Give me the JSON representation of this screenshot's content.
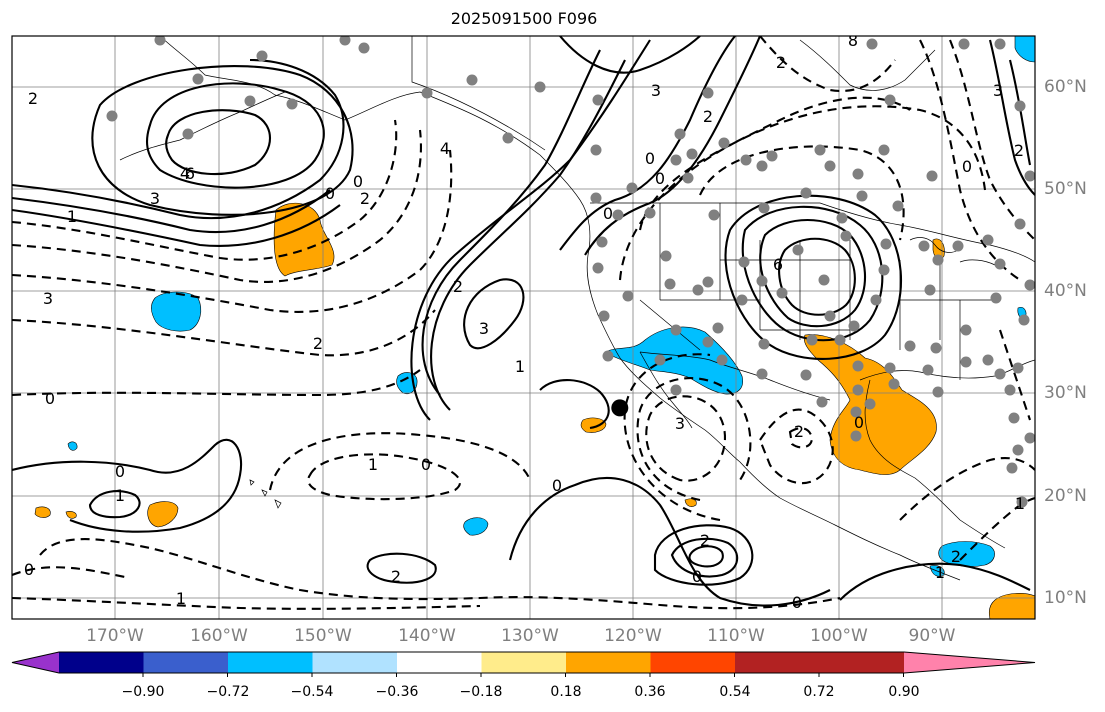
{
  "title": "2025091500 F096",
  "lon_labels": [
    "170°W",
    "160°W",
    "150°W",
    "140°W",
    "130°W",
    "120°W",
    "110°W",
    "100°W",
    "90°W"
  ],
  "lat_labels": [
    "60°N",
    "50°N",
    "40°N",
    "30°N",
    "20°N",
    "10°N"
  ],
  "colorbar": {
    "colors": [
      "#9932cc",
      "#00008b",
      "#3a5fcd",
      "#00bfff",
      "#b0e2ff",
      "#ffffff",
      "#ffec8b",
      "#ffa500",
      "#ff4500",
      "#b22222",
      "#ff82ab"
    ],
    "labels": [
      "−0.90",
      "−0.72",
      "−0.54",
      "−0.36",
      "−0.18",
      "0.18",
      "0.36",
      "0.54",
      "0.72",
      "0.90"
    ]
  },
  "contour_labels": [
    "2",
    "4",
    "6",
    "3",
    "1",
    "3",
    "0",
    "0",
    "2",
    "4",
    "2",
    "0",
    "3",
    "1",
    "2",
    "0",
    "3",
    "2",
    "0",
    "6",
    "2",
    "3",
    "8",
    "0",
    "2",
    "0",
    "3",
    "2",
    "0",
    "2",
    "1",
    "0",
    "1",
    "0",
    "0",
    "2",
    "1",
    "2",
    "0",
    "0",
    "0",
    "1",
    "1"
  ],
  "colors": {
    "positive_fill": "#ffa500",
    "negative_fill": "#00bfff",
    "contour": "#000000",
    "grid": "#808080",
    "station": "#808080"
  },
  "marker": {
    "lon": -121.1,
    "lat": 28.6
  }
}
